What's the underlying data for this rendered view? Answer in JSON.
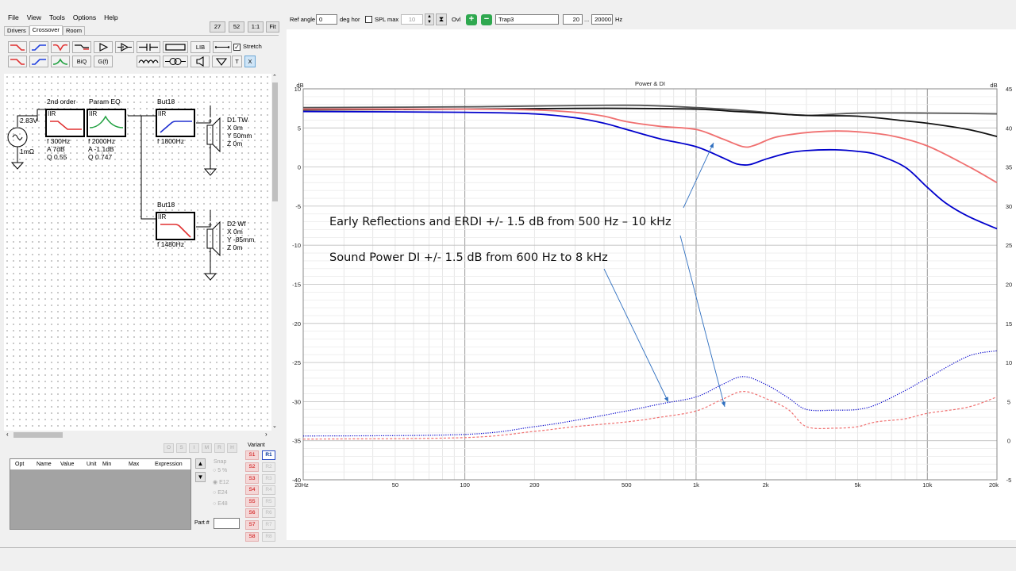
{
  "menu": [
    "File",
    "View",
    "Tools",
    "Options",
    "Help"
  ],
  "zoom_buttons": [
    "27",
    "52",
    "1:1",
    "Fit"
  ],
  "tabs": [
    {
      "label": "Drivers",
      "active": false
    },
    {
      "label": "Crossover",
      "active": true
    },
    {
      "label": "Room",
      "active": false
    }
  ],
  "toolbar": {
    "lib": "LIB",
    "biq": "BiQ",
    "gf": "G(f)",
    "t": "T",
    "x": "X",
    "stretch_label": "Stretch",
    "stretch_checked": true
  },
  "schematic": {
    "source_voltage": "2.83V",
    "source_impedance": "1mΩ",
    "blocks": [
      {
        "title": "2nd order",
        "type": "IIR",
        "icon": "shelf-filter-icon",
        "params": [
          "f  300Hz",
          "A  7dB",
          "Q  0.55"
        ]
      },
      {
        "title": "Param EQ",
        "type": "IIR",
        "icon": "peak-eq-icon",
        "params": [
          "f  2000Hz",
          "A  -1.1dB",
          "Q  0.747"
        ]
      },
      {
        "title": "But18",
        "type": "IIR",
        "icon": "highpass-icon",
        "params": [
          "f  1800Hz"
        ]
      },
      {
        "title": "But18",
        "type": "IIR",
        "icon": "lowpass-icon",
        "params": [
          "f  1480Hz"
        ]
      }
    ],
    "drivers": [
      {
        "name": "D1 TW",
        "lines": [
          "X 0m",
          "Y 50mm",
          "Z 0m"
        ]
      },
      {
        "name": "D2 Wf",
        "lines": [
          "X 0m",
          "Y -85mm",
          "Z 0m"
        ]
      }
    ]
  },
  "optimizer": {
    "mode_buttons": [
      "O",
      "S",
      "I",
      "M",
      "R",
      "H"
    ],
    "columns": [
      "Opt",
      "Name",
      "Value",
      "Unit",
      "Min",
      "Max",
      "Expression"
    ],
    "snap_label": "Snap",
    "snap_options": [
      "5 %",
      "E12",
      "E24",
      "E48"
    ],
    "snap_selected": "E12",
    "part_label": "Part #",
    "part_value": ""
  },
  "variant": {
    "label": "Variant",
    "s": [
      "S1",
      "S2",
      "S3",
      "S4",
      "S5",
      "S6",
      "S7",
      "S8"
    ],
    "r": [
      "R1",
      "R2",
      "R3",
      "R4",
      "R5",
      "R6",
      "R7",
      "R8"
    ],
    "active_r": "R1"
  },
  "graph_toolbar": {
    "ref_angle_label": "Ref angle",
    "ref_angle_value": "0",
    "deg_label": "deg hor",
    "spl_max_label": "SPL max",
    "spl_max_checked": false,
    "spl_max_value": "10",
    "ovl_label": "Ovl",
    "overlay_name": "Trap3",
    "freq_min": "20",
    "freq_sep": "...",
    "freq_max": "20000",
    "freq_unit": "Hz"
  },
  "annotations": {
    "early_reflections": "Early Reflections and ERDI  +/- 1.5 dB from 500 Hz – 10 kHz",
    "sound_power": "Sound Power DI +/- 1.5 dB from 600 Hz to 8 kHz"
  },
  "colors": {
    "accent_blue": "#0000cc",
    "curve_red": "#f07070",
    "curve_dark": "#111111",
    "curve_gray": "#555555",
    "arrow": "#3070c0",
    "variant_red": "#cc0000"
  },
  "chart_data": {
    "type": "line",
    "title": "Power & DI",
    "xlabel": "",
    "ylabel": "dB",
    "y2label": "dB",
    "x_scale": "log",
    "xlim": [
      20,
      20000
    ],
    "ylim": [
      -40,
      10
    ],
    "y2lim": [
      -5,
      45
    ],
    "grid": true,
    "x_ticks": [
      "20Hz",
      "50",
      "100",
      "200",
      "500",
      "1k",
      "2k",
      "5k",
      "10k",
      "20k"
    ],
    "y_ticks": [
      "10",
      "5",
      "0",
      "-5",
      "-10",
      "-15",
      "-20",
      "-25",
      "-30",
      "-35",
      "-40"
    ],
    "y2_ticks": [
      "45",
      "40",
      "35",
      "30",
      "25",
      "20",
      "15",
      "10",
      "5",
      "0",
      "-5"
    ],
    "series": [
      {
        "color": "#555555",
        "style": "solid",
        "axis": "left",
        "x": [
          20,
          100,
          500,
          1000,
          1500,
          2000,
          3000,
          5000,
          10000,
          20000
        ],
        "y": [
          7.6,
          7.7,
          7.9,
          7.6,
          7.3,
          7.0,
          6.6,
          6.9,
          6.9,
          6.8
        ]
      },
      {
        "color": "#111111",
        "style": "solid",
        "axis": "left",
        "x": [
          20,
          100,
          300,
          500,
          1000,
          1500,
          2000,
          3000,
          5000,
          8000,
          10000,
          15000,
          20000
        ],
        "y": [
          7.3,
          7.4,
          7.5,
          7.5,
          7.4,
          7.1,
          6.9,
          6.6,
          6.5,
          5.9,
          5.6,
          4.8,
          3.9
        ]
      },
      {
        "color": "#f07070",
        "style": "solid",
        "axis": "left",
        "x": [
          20,
          100,
          200,
          300,
          400,
          500,
          700,
          1000,
          1300,
          1600,
          1800,
          2200,
          3000,
          4000,
          5000,
          7000,
          10000,
          15000,
          20000
        ],
        "y": [
          7.4,
          7.4,
          7.3,
          7.0,
          6.5,
          5.8,
          5.2,
          4.8,
          3.6,
          2.6,
          2.8,
          3.8,
          4.4,
          4.6,
          4.5,
          4.0,
          2.7,
          0.1,
          -2.0
        ]
      },
      {
        "color": "#0000cc",
        "style": "solid",
        "axis": "left",
        "x": [
          20,
          100,
          200,
          300,
          400,
          500,
          700,
          1000,
          1300,
          1500,
          1700,
          2000,
          2500,
          3000,
          4000,
          5000,
          6000,
          8000,
          10000,
          12000,
          15000,
          20000
        ],
        "y": [
          7.1,
          7.0,
          6.8,
          6.3,
          5.6,
          4.8,
          3.6,
          2.6,
          1.2,
          0.4,
          0.3,
          1.0,
          1.8,
          2.1,
          2.2,
          2.0,
          1.6,
          0.0,
          -2.6,
          -4.6,
          -6.3,
          -7.9
        ]
      },
      {
        "color": "#0000cc",
        "style": "dotted",
        "axis": "right",
        "x": [
          20,
          100,
          200,
          300,
          500,
          700,
          1000,
          1300,
          1600,
          2000,
          2500,
          3000,
          4000,
          5000,
          6000,
          8000,
          10000,
          15000,
          20000
        ],
        "y": [
          0.6,
          0.8,
          1.8,
          2.6,
          3.8,
          4.7,
          5.6,
          7.2,
          8.2,
          7.2,
          5.5,
          4.0,
          3.9,
          4.0,
          4.6,
          6.4,
          8.0,
          10.8,
          11.5
        ]
      },
      {
        "color": "#f07070",
        "style": "dashed",
        "axis": "right",
        "x": [
          20,
          100,
          200,
          300,
          500,
          700,
          1000,
          1300,
          1600,
          2000,
          2500,
          3000,
          4000,
          5000,
          6000,
          8000,
          10000,
          15000,
          20000
        ],
        "y": [
          0.2,
          0.4,
          1.2,
          1.8,
          2.4,
          3.0,
          3.8,
          5.3,
          6.3,
          5.4,
          4.0,
          1.8,
          1.6,
          1.8,
          2.4,
          2.8,
          3.5,
          4.3,
          5.6
        ]
      }
    ]
  }
}
